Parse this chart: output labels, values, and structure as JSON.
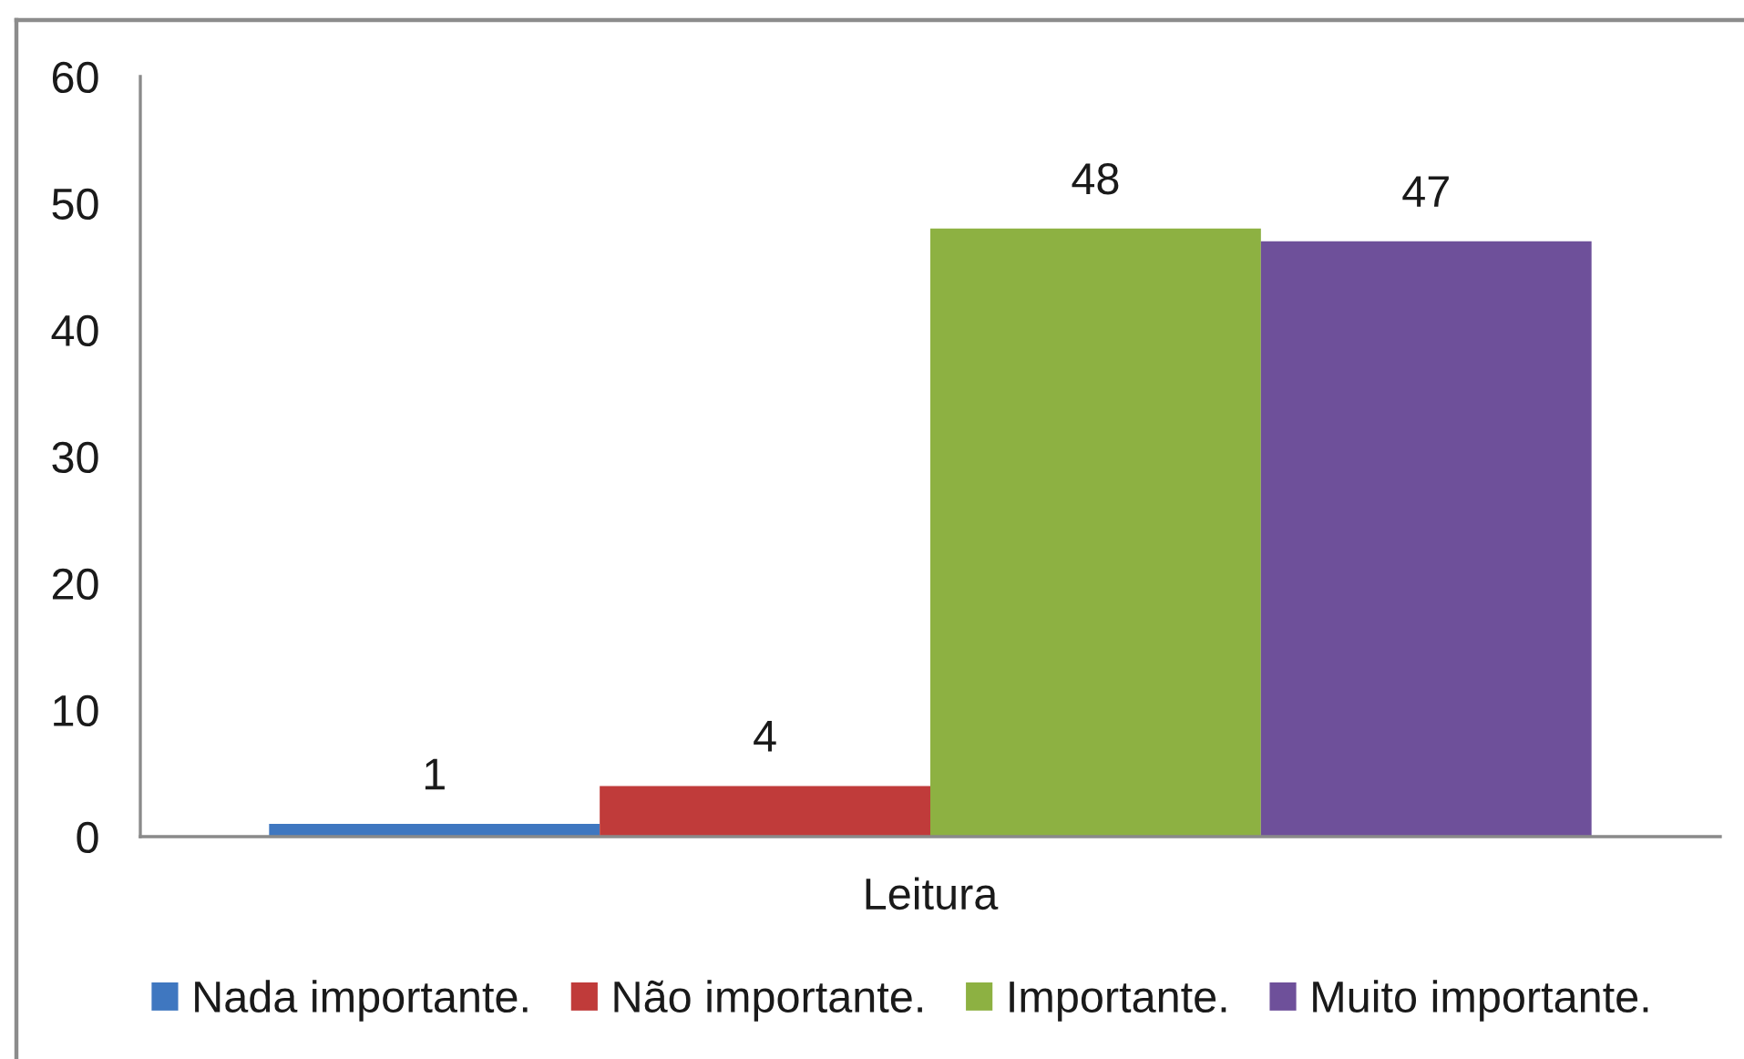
{
  "chart_data": {
    "type": "bar",
    "categories": [
      "Leitura"
    ],
    "series": [
      {
        "name": "Nada importante.",
        "color": "#3f77c0",
        "values": [
          1
        ]
      },
      {
        "name": "Não importante.",
        "color": "#c03b3a",
        "values": [
          4
        ]
      },
      {
        "name": "Importante.",
        "color": "#8db142",
        "values": [
          48
        ]
      },
      {
        "name": "Muito importante.",
        "color": "#6e509a",
        "values": [
          47
        ]
      }
    ],
    "ylim": [
      0,
      60
    ],
    "yticks": [
      0,
      10,
      20,
      30,
      40,
      50,
      60
    ],
    "data_labels": true,
    "legend": "bottom"
  }
}
